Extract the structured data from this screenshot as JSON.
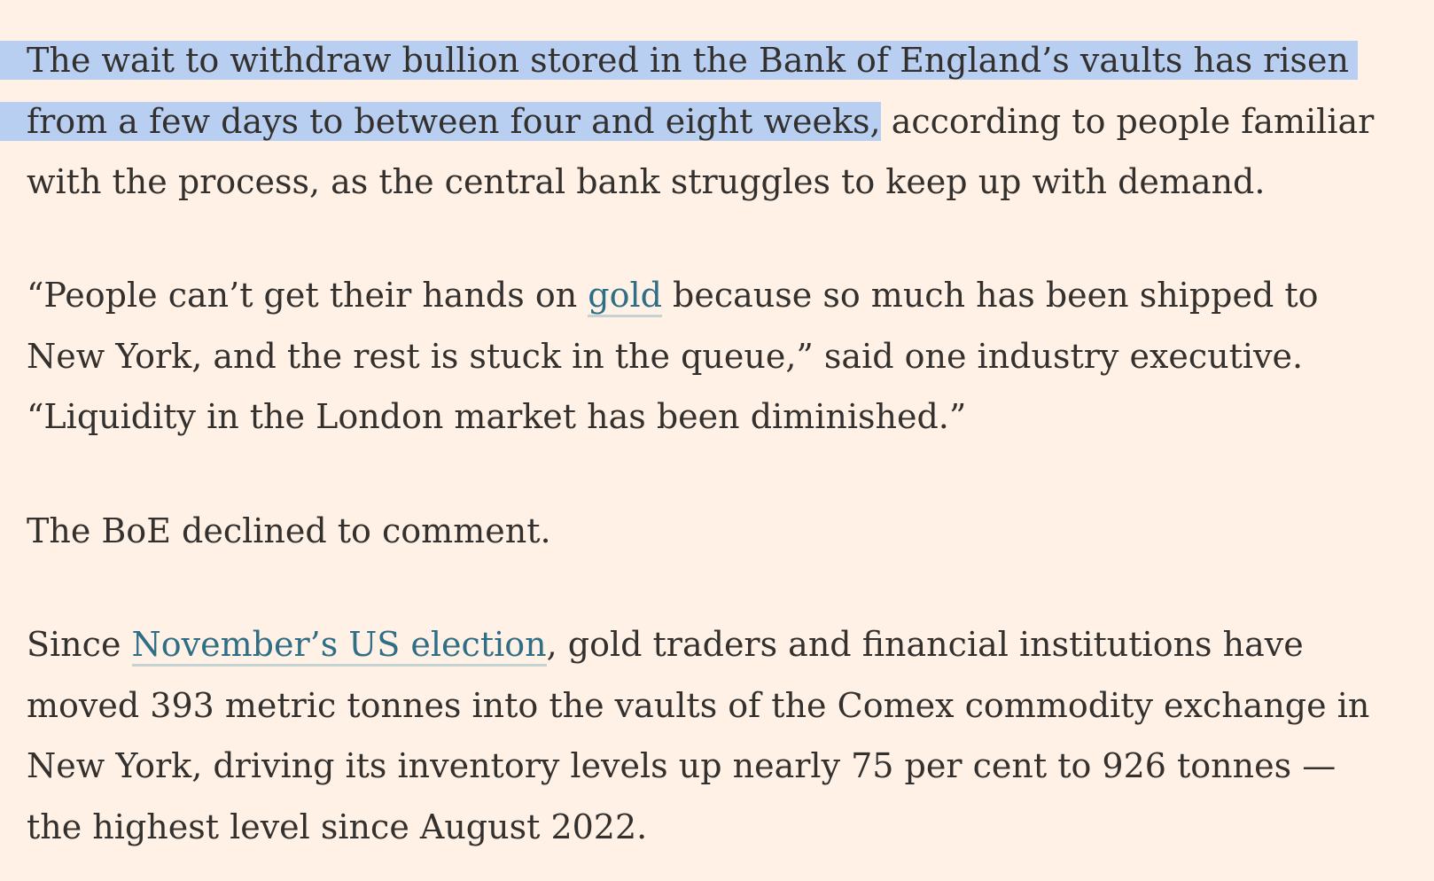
{
  "article": {
    "paragraph1": {
      "line1_highlighted": "The wait to withdraw bullion stored in the Bank of England’s vaults has risen",
      "line2_highlighted": "from a few days to between four and eight weeks,",
      "line2_rest": " according to people familiar",
      "line3": "with the process, as the central bank struggles to keep up with demand."
    },
    "paragraph2": {
      "line1_before": "“People can’t get their hands on ",
      "link_gold": "gold",
      "line1_after": " because so much has been shipped to",
      "line2": "New York, and the rest is stuck in the queue,” said one industry executive.",
      "line3": "“Liquidity in the London market has been diminished.”"
    },
    "paragraph3": {
      "line1": "The BoE declined to comment."
    },
    "paragraph4": {
      "line1_before": "Since ",
      "link_election": "November’s US election",
      "line1_after": ", gold traders and financial institutions have",
      "line2": "moved 393 metric tonnes into the vaults of the Comex commodity exchange in",
      "line3": "New York, driving its inventory levels up nearly 75 per cent to 926 tonnes —",
      "line4": "the highest level since August 2022."
    }
  },
  "colors": {
    "background": "#fff1e5",
    "text": "#33302e",
    "link": "#2e6e86",
    "selection": "#b8cff1"
  }
}
